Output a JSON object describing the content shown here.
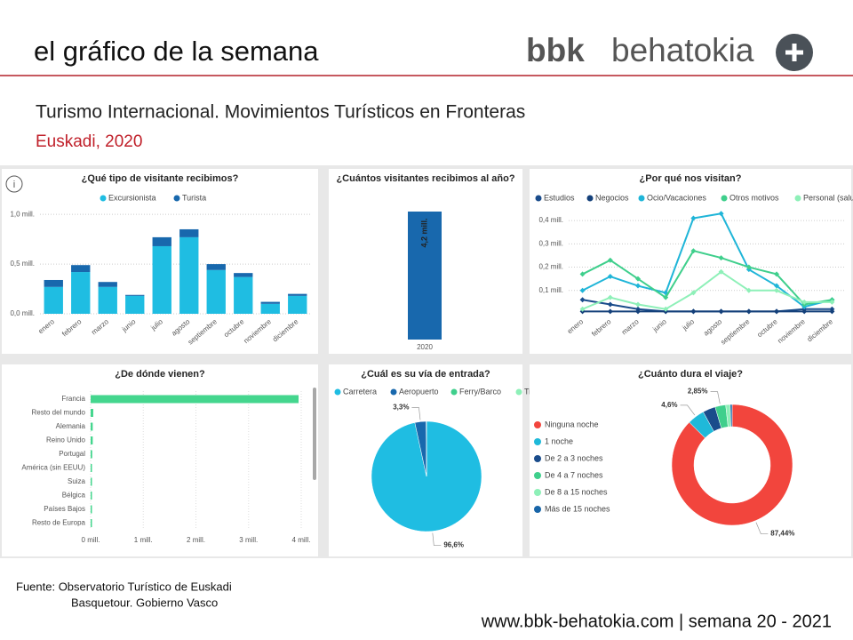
{
  "header": {
    "title": "el gráfico de la semana",
    "brand_bold": "bbk",
    "brand": "behatokia"
  },
  "heading": {
    "title": "Turismo Internacional. Movimientos Turísticos en Fronteras",
    "subtitle": "Euskadi, 2020"
  },
  "chart_data": [
    {
      "type": "bar",
      "stacked": true,
      "title": "¿Qué tipo de visitante recibimos?",
      "legend": "top",
      "categories": [
        "enero",
        "febrero",
        "marzo",
        "junio",
        "julio",
        "agosto",
        "septiembre",
        "octubre",
        "noviembre",
        "diciembre"
      ],
      "series": [
        {
          "name": "Excursionista",
          "color": "#1fbde2",
          "values": [
            0.27,
            0.42,
            0.27,
            0.18,
            0.68,
            0.77,
            0.44,
            0.37,
            0.1,
            0.18
          ]
        },
        {
          "name": "Turista",
          "color": "#1868ad",
          "values": [
            0.07,
            0.07,
            0.05,
            0.01,
            0.09,
            0.08,
            0.06,
            0.04,
            0.02,
            0.02
          ]
        }
      ],
      "ylim": [
        0,
        1.1
      ],
      "yticks": [
        {
          "value": 0,
          "label": "0,0 mill."
        },
        {
          "value": 0.5,
          "label": "0,5 mill."
        },
        {
          "value": 1,
          "label": "1,0 mill."
        }
      ],
      "grid": true
    },
    {
      "type": "bar",
      "title": "¿Cuántos visitantes recibimos al año?",
      "categories": [
        "2020"
      ],
      "values": [
        4.2
      ],
      "value_labels": [
        "4,2 mill."
      ],
      "color": "#1868ad"
    },
    {
      "type": "line",
      "title": "¿Por qué nos visitan?",
      "legend": "top-left",
      "categories": [
        "enero",
        "febrero",
        "marzo",
        "junio",
        "julio",
        "agosto",
        "septiembre",
        "octubre",
        "noviembre",
        "diciembre"
      ],
      "series": [
        {
          "name": "Estudios",
          "color": "#1a4c8b",
          "values": [
            0.06,
            0.04,
            0.02,
            0.01,
            0.01,
            0.01,
            0.01,
            0.01,
            0.02,
            0.02
          ]
        },
        {
          "name": "Negocios",
          "color": "#14407a",
          "values": [
            0.01,
            0.01,
            0.01,
            0.01,
            0.01,
            0.01,
            0.01,
            0.01,
            0.01,
            0.01
          ]
        },
        {
          "name": "Ocio/Vacaciones",
          "color": "#1fb5d8",
          "values": [
            0.1,
            0.16,
            0.12,
            0.09,
            0.41,
            0.43,
            0.19,
            0.12,
            0.03,
            0.06
          ]
        },
        {
          "name": "Otros motivos",
          "color": "#3fcf8c",
          "values": [
            0.17,
            0.23,
            0.15,
            0.07,
            0.27,
            0.24,
            0.2,
            0.17,
            0.04,
            0.06
          ]
        },
        {
          "name": "Personal (salu…",
          "color": "#8ef0b8",
          "values": [
            0.02,
            0.07,
            0.04,
            0.02,
            0.09,
            0.18,
            0.1,
            0.1,
            0.05,
            0.05
          ]
        }
      ],
      "ylim": [
        0,
        0.45
      ],
      "yticks": [
        {
          "value": 0.1,
          "label": "0,1 mill."
        },
        {
          "value": 0.2,
          "label": "0,2 mill."
        },
        {
          "value": 0.3,
          "label": "0,3 mill."
        },
        {
          "value": 0.4,
          "label": "0,4 mill."
        }
      ],
      "grid": true
    },
    {
      "type": "bar",
      "orientation": "horizontal",
      "title": "¿De dónde vienen?",
      "color": "#44d68e",
      "categories": [
        "Francia",
        "Resto del mundo",
        "Alemania",
        "Reino Unido",
        "Portugal",
        "América (sin EEUU)",
        "Suiza",
        "Bélgica",
        "Países Bajos",
        "Resto de Europa"
      ],
      "values": [
        3.95,
        0.05,
        0.04,
        0.04,
        0.03,
        0.02,
        0.02,
        0.02,
        0.01,
        0.01
      ],
      "xlim": [
        0,
        4
      ],
      "xticks": [
        {
          "value": 0,
          "label": "0 mill."
        },
        {
          "value": 1,
          "label": "1 mill."
        },
        {
          "value": 2,
          "label": "2 mill."
        },
        {
          "value": 3,
          "label": "3 mill."
        },
        {
          "value": 4,
          "label": "4 mill."
        }
      ],
      "grid": true
    },
    {
      "type": "pie",
      "title": "¿Cuál es su vía de entrada?",
      "legend": "top-left",
      "categories": [
        "Carretera",
        "Aeropuerto",
        "Ferry/Barco",
        "Tren"
      ],
      "values": [
        96.6,
        3.3,
        0.05,
        0.05
      ],
      "value_labels": [
        "96,6%",
        "3,3%",
        null,
        null
      ],
      "colors": [
        "#1fbde2",
        "#1868ad",
        "#3fcf8c",
        "#8ef0b8"
      ]
    },
    {
      "type": "pie",
      "donut": true,
      "title": "¿Cuánto dura el viaje?",
      "legend": "left",
      "categories": [
        "Ninguna noche",
        "1 noche",
        "De 2 a 3 noches",
        "De 4 a 7 noches",
        "De 8 a 15 noches",
        "Más de 15 noches"
      ],
      "values": [
        87.44,
        4.6,
        3.4,
        2.85,
        1.2,
        0.51
      ],
      "value_labels": [
        "87,44%",
        "4,6%",
        null,
        "2,85%",
        null,
        null
      ],
      "colors": [
        "#f2453d",
        "#1fb9d9",
        "#1a4c8b",
        "#3fcf8c",
        "#8ef0b8",
        "#1865a8"
      ]
    }
  ],
  "footer": {
    "source": "Fuente:  Observatorio Turístico de Euskadi",
    "source2": "Basquetour. Gobierno Vasco",
    "site": "www.bbk-behatokia.com | semana 20 - 2021"
  }
}
